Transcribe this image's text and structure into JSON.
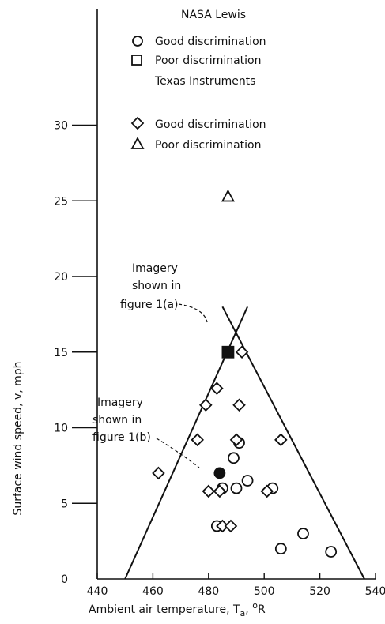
{
  "chart_data": {
    "type": "scatter",
    "xlabel_main": "Ambient air temperature, T",
    "xlabel_sub": "a",
    "xlabel_unit": ", ",
    "xlabel_sup": "o",
    "xlabel_unit2": "R",
    "ylabel": "Surface wind speed, v, mph",
    "xlim": [
      440,
      540
    ],
    "ylim": [
      0,
      35
    ],
    "x_ticks": [
      "440",
      "460",
      "480",
      "500",
      "520",
      "540"
    ],
    "y_ticks": [
      "0",
      "5",
      "10",
      "15",
      "20",
      "25",
      "30"
    ],
    "legend": {
      "group1_title": "NASA Lewis",
      "group1_good": "Good discrimination",
      "group1_poor": "Poor discrimination",
      "group2_title": "Texas Instruments",
      "group2_good": "Good discrimination",
      "group2_poor": "Poor discrimination"
    },
    "annotations": {
      "a_line1": "Imagery",
      "a_line2": "shown in",
      "a_line3": "figure 1(a)",
      "b_line1": "Imagery",
      "b_line2": "shown in",
      "b_line3": "figure 1(b)"
    },
    "boundary_lines": [
      {
        "name": "left-boundary",
        "x": [
          450,
          494
        ],
        "y": [
          0,
          18
        ]
      },
      {
        "name": "right-boundary",
        "x": [
          485,
          536
        ],
        "y": [
          18,
          0
        ]
      }
    ],
    "series": [
      {
        "name": "NASA Lewis good discrimination",
        "marker": "circle",
        "filled": false,
        "points": [
          [
            489,
            8
          ],
          [
            491,
            9
          ],
          [
            494,
            6.5
          ],
          [
            490,
            6
          ],
          [
            485,
            6
          ],
          [
            503,
            6
          ],
          [
            483,
            3.5
          ],
          [
            506,
            2
          ],
          [
            514,
            3
          ],
          [
            524,
            1.8
          ]
        ]
      },
      {
        "name": "NASA Lewis poor discrimination",
        "marker": "square",
        "filled": false,
        "points": []
      },
      {
        "name": "Texas Instruments good discrimination",
        "marker": "diamond",
        "filled": false,
        "points": [
          [
            492,
            15
          ],
          [
            483,
            12.6
          ],
          [
            479,
            11.5
          ],
          [
            491,
            11.5
          ],
          [
            476,
            9.2
          ],
          [
            490,
            9.2
          ],
          [
            506,
            9.2
          ],
          [
            462,
            7
          ],
          [
            480,
            5.8
          ],
          [
            484,
            5.8
          ],
          [
            501,
            5.8
          ],
          [
            485,
            3.5
          ],
          [
            488,
            3.5
          ]
        ]
      },
      {
        "name": "Texas Instruments poor discrimination",
        "marker": "triangle",
        "filled": false,
        "points": [
          [
            487,
            25.3
          ]
        ]
      },
      {
        "name": "Imagery shown in figure 1(a)",
        "marker": "square",
        "filled": true,
        "points": [
          [
            487,
            15
          ]
        ]
      },
      {
        "name": "Imagery shown in figure 1(b)",
        "marker": "circle",
        "filled": true,
        "points": [
          [
            484,
            7
          ]
        ]
      }
    ]
  }
}
